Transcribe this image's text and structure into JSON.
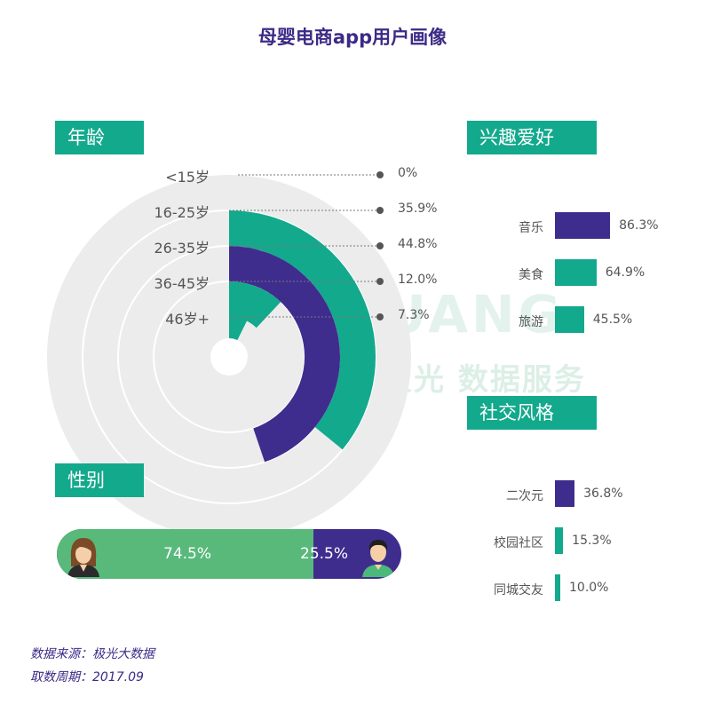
{
  "title": "母婴电商app用户画像",
  "watermark": {
    "brand": "JIGUANG",
    "text": "极光 数据服务"
  },
  "sections": {
    "age": "年龄",
    "gender": "性别",
    "interests": "兴趣爱好",
    "social": "社交风格"
  },
  "colors": {
    "teal": "#13a98c",
    "purple": "#3f2d8e",
    "green": "#58b97b",
    "ring_bg": "#ececec"
  },
  "chart_data": [
    {
      "type": "radial-bar",
      "title": "年龄",
      "categories": [
        "<15岁",
        "16-25岁",
        "26-35岁",
        "36-45岁",
        "46岁+"
      ],
      "values": [
        0,
        35.9,
        44.8,
        12.0,
        7.3
      ],
      "labels": [
        "0%",
        "35.9%",
        "44.8%",
        "12.0%",
        "7.3%"
      ]
    },
    {
      "type": "bar",
      "title": "兴趣爱好",
      "categories": [
        "音乐",
        "美食",
        "旅游"
      ],
      "values": [
        86.3,
        64.9,
        45.5
      ],
      "labels": [
        "86.3%",
        "64.9%",
        "45.5%"
      ]
    },
    {
      "type": "bar",
      "title": "社交风格",
      "categories": [
        "二次元",
        "校园社区",
        "同城交友"
      ],
      "values": [
        36.8,
        15.3,
        10.0
      ],
      "labels": [
        "36.8%",
        "15.3%",
        "10.0%"
      ]
    },
    {
      "type": "bar",
      "title": "性别",
      "values": [
        74.5,
        25.5
      ],
      "labels": [
        "74.5%",
        "25.5%"
      ]
    }
  ],
  "footer": {
    "source": "数据来源：极光大数据",
    "period": "取数周期：2017.09"
  }
}
